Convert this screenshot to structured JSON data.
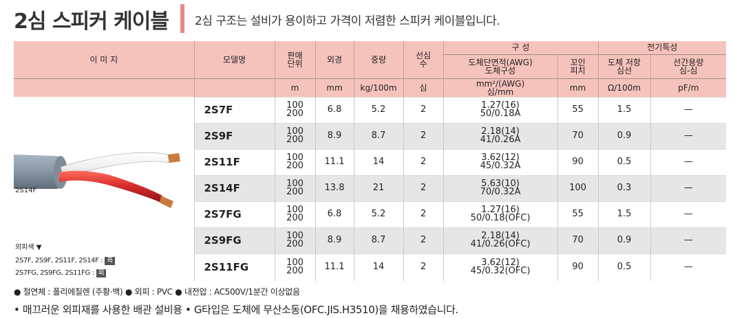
{
  "header": {
    "title": "2심 스피커 케이블",
    "subtitle": "2심 구조는 설비가 용이하고 가격이 저렴한 스피커 케이블입니다."
  },
  "table": {
    "headers": {
      "image": "이 미 지",
      "model": "모델명",
      "unit_line1": "판매",
      "unit_line2": "단위",
      "od": "외경",
      "weight": "중량",
      "cores_line1": "선심",
      "cores_line2": "수",
      "composition": "구 성",
      "area_line1": "도체단면적(AWG)",
      "area_line2": "도체구성",
      "twist_line1": "꼬인",
      "twist_line2": "피치",
      "elec": "전기특성",
      "res_line1": "도체 저항",
      "res_line2": "심선",
      "cap_line1": "선간용량",
      "cap_line2": "심-심"
    },
    "units": {
      "unit": "m",
      "od": "mm",
      "weight": "kg/100m",
      "cores": "심",
      "area_line1": "mm²/(AWG)",
      "area_line2": "심/mm",
      "twist": "mm",
      "res": "Ω/100m",
      "cap": "pF/m"
    },
    "rows": [
      {
        "model": "2S7F",
        "unit1": "100",
        "unit2": "200",
        "od": "6.8",
        "weight": "5.2",
        "cores": "2",
        "area1": "1.27(16)",
        "area2": "50/0.18A",
        "twist": "55",
        "res": "1.5",
        "cap": "—"
      },
      {
        "model": "2S9F",
        "unit1": "100",
        "unit2": "200",
        "od": "8.9",
        "weight": "8.7",
        "cores": "2",
        "area1": "2.18(14)",
        "area2": "41/0.26A",
        "twist": "70",
        "res": "0.9",
        "cap": "—"
      },
      {
        "model": "2S11F",
        "unit1": "100",
        "unit2": "200",
        "od": "11.1",
        "weight": "14",
        "cores": "2",
        "area1": "3.62(12)",
        "area2": "45/0.32A",
        "twist": "90",
        "res": "0.5",
        "cap": "—"
      },
      {
        "model": "2S14F",
        "unit1": "100",
        "unit2": "200",
        "od": "13.8",
        "weight": "21",
        "cores": "2",
        "area1": "5.63(10)",
        "area2": "70/0.32A",
        "twist": "100",
        "res": "0.3",
        "cap": "—"
      },
      {
        "model": "2S7FG",
        "unit1": "100",
        "unit2": "200",
        "od": "6.8",
        "weight": "5.2",
        "cores": "2",
        "area1": "1.27(16)",
        "area2": "50/0.18(OFC)",
        "twist": "55",
        "res": "1.5",
        "cap": "—"
      },
      {
        "model": "2S9FG",
        "unit1": "100",
        "unit2": "200",
        "od": "8.9",
        "weight": "8.7",
        "cores": "2",
        "area1": "2.18(14)",
        "area2": "41/0.26(OFC)",
        "twist": "70",
        "res": "0.9",
        "cap": "—"
      },
      {
        "model": "2S11FG",
        "unit1": "100",
        "unit2": "200",
        "od": "11.1",
        "weight": "14",
        "cores": "2",
        "area1": "3.62(12)",
        "area2": "45/0.32(OFC)",
        "twist": "90",
        "res": "0.5",
        "cap": "—"
      }
    ]
  },
  "image_panel": {
    "cable_label": "2S14F",
    "color_heading": "외피색 ▼",
    "color_line1": "2S7F, 2S9F, 2S11F, 2S14F :",
    "color_badge1": "흑",
    "color_line2": "2S7FG, 2S9FG, 2S11FG :",
    "color_badge2": "회"
  },
  "footnotes": {
    "line1": "● 절연체 : 폴리에칠렌 (주황·백) ● 외피 : PVC ● 내전압 : AC500V/1분간 이상없음",
    "line2": "• 매끄러운 외피재를 사용한 배관 설비용  • G타입은 도체에 무산소동(OFC.JIS.H3510)을 채용하였습니다."
  },
  "colors": {
    "header_bg": "#f6c3bc",
    "accent_bar": "#e58a8a",
    "row_alt": "#e6e6e6",
    "cable_jacket": "#8b9aa8",
    "wire_red": "#d42a2a",
    "copper": "#c97a3c"
  }
}
